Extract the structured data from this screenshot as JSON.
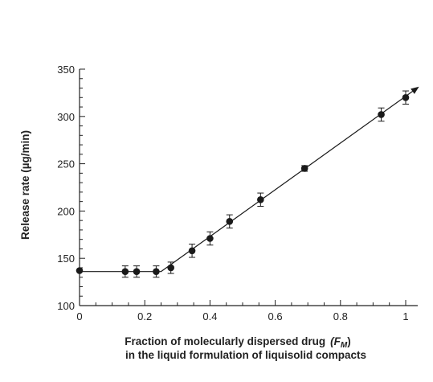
{
  "chart_data": {
    "type": "scatter",
    "title": "",
    "xlabel_line1": "Fraction of molecularly dispersed drug",
    "xlabel_symbol": "(F",
    "xlabel_subscript": "M",
    "xlabel_close": ")",
    "xlabel_line2": "in the liquid formulation of liquisolid compacts",
    "ylabel": "Release rate (µg/min)",
    "xlim": [
      0,
      1.05
    ],
    "ylim": [
      100,
      350
    ],
    "x_ticks": [
      0,
      0.2,
      0.4,
      0.6,
      0.8,
      1
    ],
    "x_tick_labels": [
      "0",
      "0.2",
      "0.4",
      "0.6",
      "0.8",
      "1"
    ],
    "y_ticks": [
      100,
      150,
      200,
      250,
      300,
      350
    ],
    "y_tick_labels": [
      "100",
      "150",
      "200",
      "250",
      "300",
      "350"
    ],
    "grid": false,
    "points": [
      {
        "x": 0.0,
        "y": 137,
        "err": 0
      },
      {
        "x": 0.14,
        "y": 136,
        "err": 6
      },
      {
        "x": 0.175,
        "y": 136,
        "err": 6
      },
      {
        "x": 0.235,
        "y": 136,
        "err": 6
      },
      {
        "x": 0.28,
        "y": 140,
        "err": 6
      },
      {
        "x": 0.345,
        "y": 158,
        "err": 7
      },
      {
        "x": 0.4,
        "y": 171,
        "err": 7
      },
      {
        "x": 0.46,
        "y": 189,
        "err": 7
      },
      {
        "x": 0.555,
        "y": 212,
        "err": 7
      },
      {
        "x": 0.69,
        "y": 245,
        "err": 3
      },
      {
        "x": 0.925,
        "y": 302,
        "err": 7
      },
      {
        "x": 1.0,
        "y": 320,
        "err": 7
      }
    ],
    "fit_line": [
      {
        "x": 0.0,
        "y": 136
      },
      {
        "x": 0.25,
        "y": 136
      },
      {
        "x": 1.035,
        "y": 330
      }
    ],
    "colors": {
      "marker": "#1a1a1a",
      "line": "#1a1a1a"
    }
  }
}
